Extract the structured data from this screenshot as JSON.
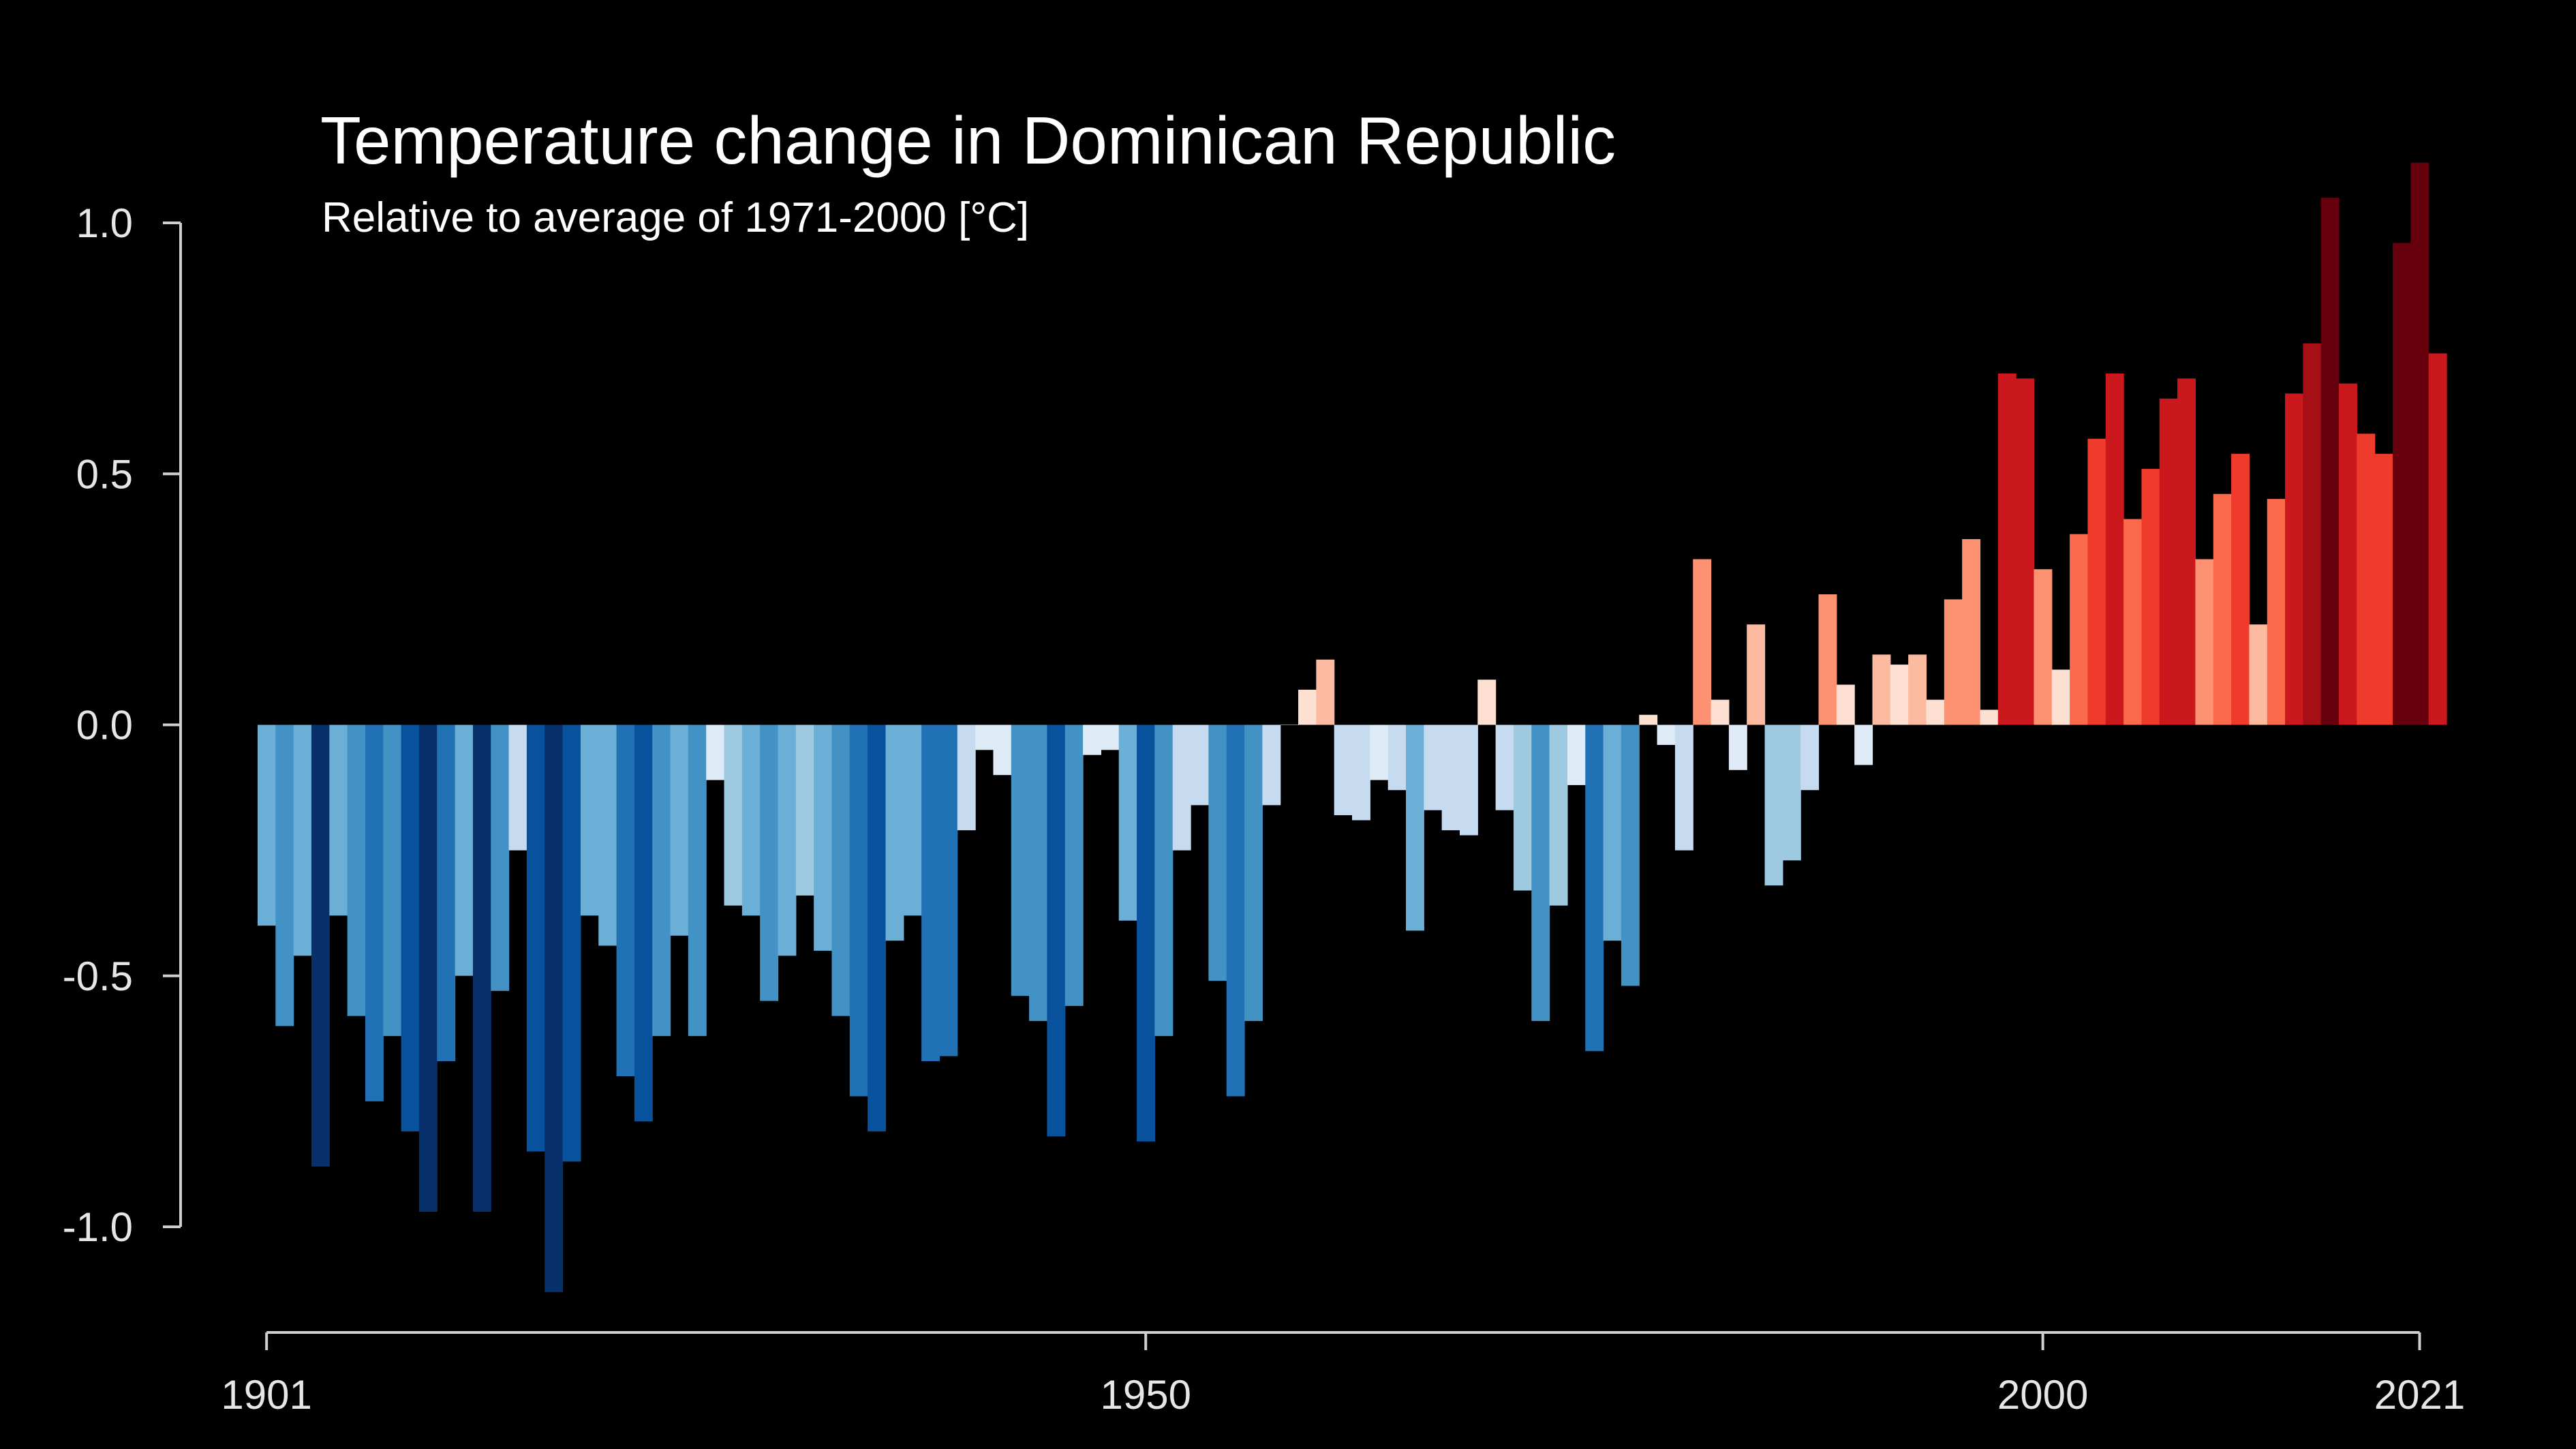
{
  "chart_data": {
    "type": "bar",
    "title": "Temperature change in Dominican Republic",
    "subtitle": "Relative to average of 1971-2000  [°C]",
    "xlabel": "",
    "ylabel": "",
    "x_start": 1901,
    "x_end": 2021,
    "xlim": [
      1901,
      2021
    ],
    "ylim": [
      -1.2,
      1.15
    ],
    "y_ticks": [
      {
        "value": 1.0,
        "label": "1.0"
      },
      {
        "value": 0.5,
        "label": "0.5"
      },
      {
        "value": 0.0,
        "label": "0.0"
      },
      {
        "value": -0.5,
        "label": "-0.5"
      },
      {
        "value": -1.0,
        "label": "-1.0"
      }
    ],
    "x_ticks": [
      {
        "value": 1901,
        "label": "1901"
      },
      {
        "value": 1950,
        "label": "1950"
      },
      {
        "value": 2000,
        "label": "2000"
      },
      {
        "value": 2021,
        "label": "2021"
      }
    ],
    "grid": false,
    "legend": "none",
    "color_scale": {
      "min": -1.0,
      "max": 1.0,
      "stops": [
        "#08306b",
        "#08519c",
        "#2171b5",
        "#4292c6",
        "#6baed6",
        "#9ecae1",
        "#c6dbef",
        "#deebf7",
        "#fee0d2",
        "#fcbba1",
        "#fc9272",
        "#fb6a4a",
        "#ef3b2c",
        "#cb181d",
        "#a50f15",
        "#67000d"
      ]
    },
    "values": [
      -0.4,
      -0.6,
      -0.46,
      -0.88,
      -0.38,
      -0.58,
      -0.75,
      -0.62,
      -0.81,
      -0.97,
      -0.67,
      -0.5,
      -0.97,
      -0.53,
      -0.25,
      -0.85,
      -1.13,
      -0.87,
      -0.38,
      -0.44,
      -0.7,
      -0.79,
      -0.62,
      -0.42,
      -0.62,
      -0.11,
      -0.36,
      -0.38,
      -0.55,
      -0.46,
      -0.34,
      -0.45,
      -0.58,
      -0.74,
      -0.81,
      -0.43,
      -0.38,
      -0.67,
      -0.66,
      -0.21,
      -0.05,
      -0.1,
      -0.54,
      -0.59,
      -0.82,
      -0.56,
      -0.06,
      -0.05,
      -0.39,
      -0.83,
      -0.62,
      -0.25,
      -0.16,
      -0.51,
      -0.74,
      -0.59,
      -0.16,
      0.0,
      0.07,
      0.13,
      -0.18,
      -0.19,
      -0.11,
      -0.13,
      -0.41,
      -0.17,
      -0.21,
      -0.22,
      0.09,
      -0.17,
      -0.33,
      -0.59,
      -0.36,
      -0.12,
      -0.65,
      -0.43,
      -0.52,
      0.02,
      -0.04,
      -0.25,
      0.33,
      0.05,
      -0.09,
      0.2,
      -0.32,
      -0.27,
      -0.13,
      0.26,
      0.08,
      -0.08,
      0.14,
      0.12,
      0.14,
      0.05,
      0.25,
      0.37,
      0.03,
      0.7,
      0.69,
      0.31,
      0.11,
      0.38,
      0.57,
      0.7,
      0.41,
      0.51,
      0.65,
      0.69,
      0.33,
      0.46,
      0.54,
      0.2,
      0.45,
      0.66,
      0.76,
      1.05,
      0.68,
      0.58,
      0.54,
      0.96,
      1.12,
      0.74
    ]
  }
}
